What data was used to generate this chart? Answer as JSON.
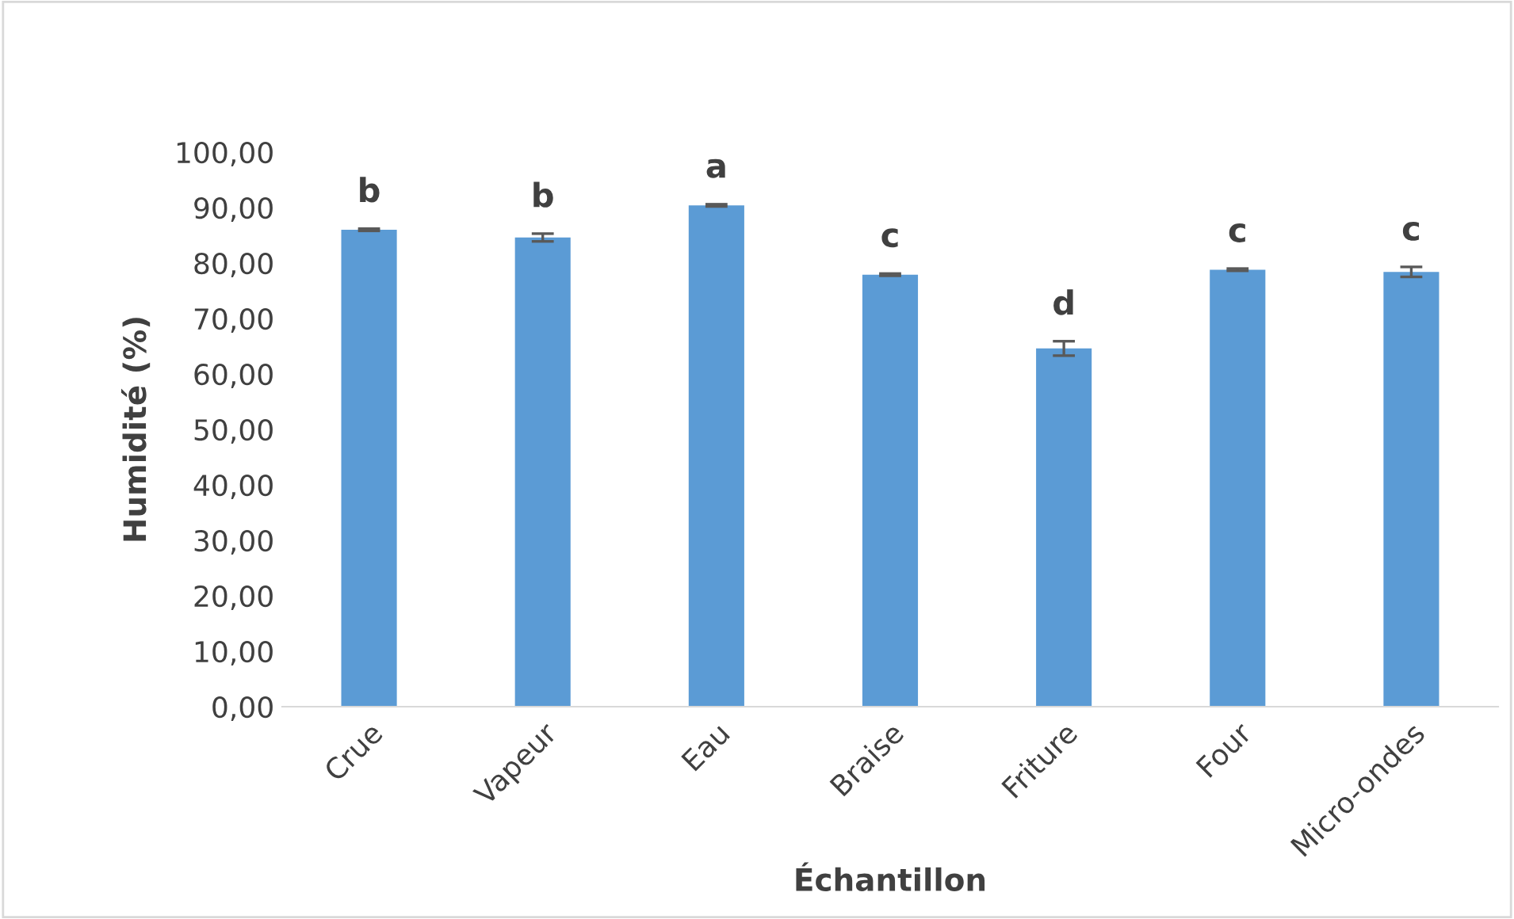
{
  "chart_data": {
    "type": "bar",
    "xlabel": "Échantillon",
    "ylabel": "Humidité (%)",
    "categories": [
      "Crue",
      "Vapeur",
      "Eau",
      "Braise",
      "Friture",
      "Four",
      "Micro-ondes"
    ],
    "values": [
      86.0,
      84.6,
      90.4,
      77.9,
      64.6,
      78.8,
      78.4
    ],
    "errors": [
      0.2,
      0.7,
      0.2,
      0.2,
      1.3,
      0.2,
      0.9
    ],
    "color": "#5b9bd5",
    "ylim": [
      0,
      100
    ],
    "yticks": [
      {
        "value": 0,
        "label": "0,00"
      },
      {
        "value": 10,
        "label": "10,00"
      },
      {
        "value": 20,
        "label": "20,00"
      },
      {
        "value": 30,
        "label": "30,00"
      },
      {
        "value": 40,
        "label": "40,00"
      },
      {
        "value": 50,
        "label": "50,00"
      },
      {
        "value": 60,
        "label": "60,00"
      },
      {
        "value": 70,
        "label": "70,00"
      },
      {
        "value": 80,
        "label": "80,00"
      },
      {
        "value": 90,
        "label": "90,00"
      },
      {
        "value": 100,
        "label": "100,00"
      }
    ],
    "annotations": [
      {
        "text": "b",
        "x": "Crue",
        "y": 86.2
      },
      {
        "text": "b",
        "x": "Vapeur",
        "y": 85.3
      },
      {
        "text": "a",
        "x": "Eau",
        "y": 90.6
      },
      {
        "text": "c",
        "x": "Braise",
        "y": 78.1
      },
      {
        "text": "d",
        "x": "Friture",
        "y": 65.9
      },
      {
        "text": "c",
        "x": "Four",
        "y": 79.0
      },
      {
        "text": "c",
        "x": "Micro-ondes",
        "y": 79.3
      }
    ],
    "grid": false,
    "legend": false
  }
}
